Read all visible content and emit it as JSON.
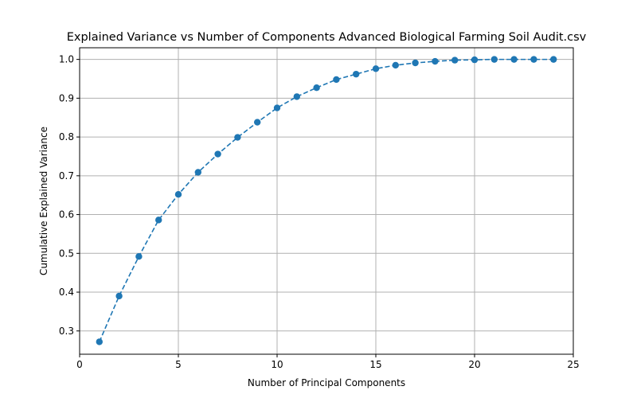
{
  "chart_data": {
    "type": "line",
    "title": "Explained Variance vs Number of Components Advanced Biological Farming Soil Audit.csv",
    "xlabel": "Number of Principal Components",
    "ylabel": "Cumulative Explained Variance",
    "xlim": [
      0,
      25
    ],
    "ylim": [
      0.24,
      1.03
    ],
    "xticks": [
      0,
      5,
      10,
      15,
      20,
      25
    ],
    "yticks": [
      0.3,
      0.4,
      0.5,
      0.6,
      0.7,
      0.8,
      0.9,
      1.0
    ],
    "ytick_labels": [
      "0.3",
      "0.4",
      "0.5",
      "0.6",
      "0.7",
      "0.8",
      "0.9",
      "1.0"
    ],
    "grid": true,
    "line_style": "dashed",
    "marker": "circle",
    "color": "#1f77b4",
    "series": [
      {
        "x": [
          1,
          2,
          3,
          4,
          5,
          6,
          7,
          8,
          9,
          10,
          11,
          12,
          13,
          14,
          15,
          16,
          17,
          18,
          19,
          20,
          21,
          22,
          23,
          24
        ],
        "values": [
          0.272,
          0.39,
          0.492,
          0.586,
          0.652,
          0.709,
          0.756,
          0.799,
          0.838,
          0.875,
          0.904,
          0.927,
          0.948,
          0.962,
          0.976,
          0.985,
          0.991,
          0.995,
          0.998,
          0.999,
          1.0,
          1.0,
          1.0,
          1.0
        ]
      }
    ]
  }
}
